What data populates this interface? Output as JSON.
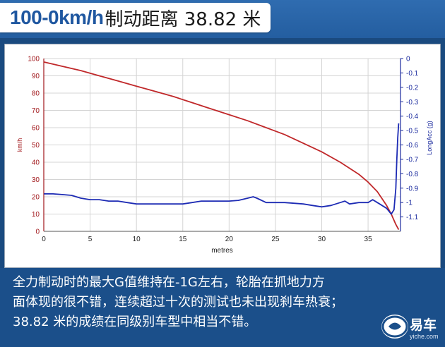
{
  "header": {
    "title_main": "100-0km/h",
    "title_sub": "制动距离 38.82 米"
  },
  "caption": {
    "lines": [
      "全力制动时的最大G值维持在-1G左右，轮胎在抓地力方",
      "面体现的很不错，连续超过十次的测试也未出现刹车热衰；",
      "38.82 米的成绩在同级别车型中相当不错。"
    ]
  },
  "logo": {
    "text": "易车",
    "sub": "yiche.com",
    "icon": "yiche-logo-icon"
  },
  "colors": {
    "speed": "#c0282a",
    "accel": "#1d2bb4",
    "left_axis": "#a0161a",
    "right_axis": "#1a2a9e"
  },
  "chart_data": {
    "type": "line",
    "xlabel": "metres",
    "ylabel_left": "km/h",
    "ylabel_right": "LongAcc (g)",
    "xlim": [
      0,
      38.5
    ],
    "ylim_left": [
      0,
      100
    ],
    "ylim_right": [
      -1.2,
      0
    ],
    "x_ticks": [
      0,
      5,
      10,
      15,
      20,
      25,
      30,
      35
    ],
    "y_ticks_left": [
      0,
      10,
      20,
      30,
      40,
      50,
      60,
      70,
      80,
      90,
      100
    ],
    "y_ticks_right": [
      "0",
      "-0.1",
      "-0.2",
      "-0.3",
      "-0.4",
      "-0.5",
      "-0.6",
      "-0.7",
      "-0.8",
      "-0.9",
      "-1",
      "-1.1"
    ],
    "grid": true,
    "series": [
      {
        "name": "km/h",
        "axis": "left",
        "x": [
          0,
          2,
          4,
          6,
          8,
          10,
          12,
          14,
          16,
          18,
          20,
          22,
          24,
          26,
          28,
          30,
          32,
          34,
          35,
          36,
          37,
          37.5,
          38,
          38.3
        ],
        "y": [
          98,
          95.5,
          93,
          90,
          87,
          84,
          81,
          78,
          74.5,
          71,
          67.5,
          64,
          60,
          56,
          51,
          46,
          40,
          33,
          28.5,
          23,
          15,
          10,
          4,
          1
        ]
      },
      {
        "name": "LongAcc (g)",
        "axis": "right",
        "x": [
          0,
          1,
          2,
          3,
          4,
          5,
          6,
          7,
          8,
          9,
          10,
          12,
          14,
          15,
          16,
          17,
          18,
          19,
          20,
          21,
          22,
          22.6,
          23,
          24,
          25,
          26,
          27,
          28,
          29,
          30,
          31,
          32,
          32.5,
          33,
          34,
          35,
          35.5,
          36,
          37,
          37.5,
          37.8,
          38,
          38.1,
          38.2,
          38.3
        ],
        "y": [
          -0.94,
          -0.94,
          -0.945,
          -0.95,
          -0.97,
          -0.98,
          -0.98,
          -0.99,
          -0.99,
          -1.0,
          -1.01,
          -1.01,
          -1.01,
          -1.01,
          -1.0,
          -0.99,
          -0.99,
          -0.99,
          -0.99,
          -0.985,
          -0.97,
          -0.96,
          -0.97,
          -1.0,
          -1.0,
          -1.0,
          -1.005,
          -1.01,
          -1.02,
          -1.03,
          -1.02,
          -1.0,
          -0.99,
          -1.01,
          -1.0,
          -1.0,
          -0.98,
          -1.0,
          -1.04,
          -1.08,
          -1.05,
          -0.9,
          -0.7,
          -0.55,
          -0.45
        ]
      }
    ]
  }
}
